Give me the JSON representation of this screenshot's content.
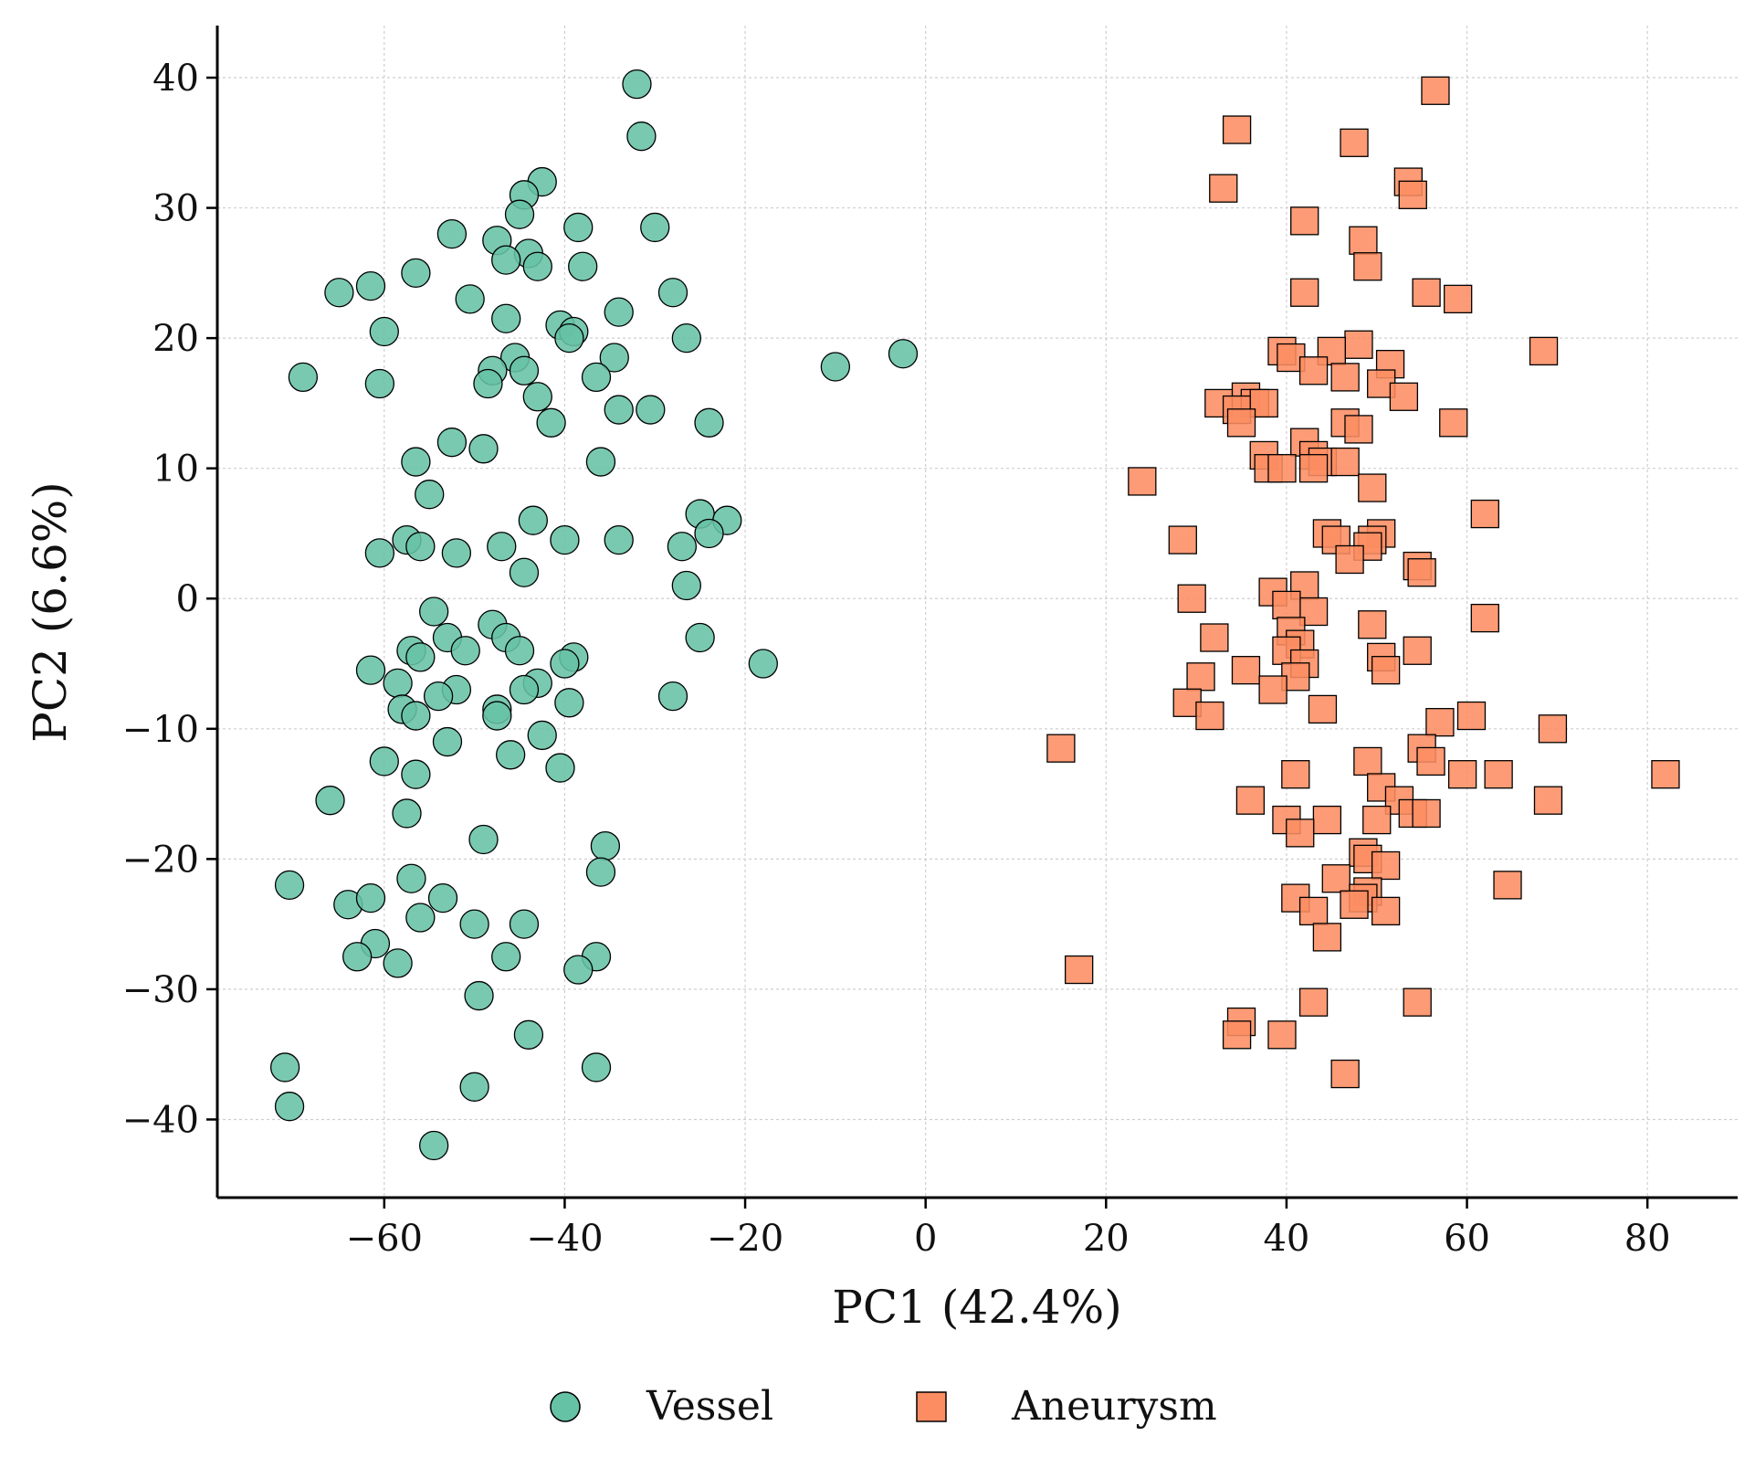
{
  "chart_data": {
    "type": "scatter",
    "title": "",
    "xlabel": "PC1 (42.4%)",
    "ylabel": "PC2 (6.6%)",
    "xlim": [
      -78.5,
      90
    ],
    "ylim": [
      -46,
      44
    ],
    "xticks": [
      -60,
      -40,
      -20,
      0,
      20,
      40,
      60,
      80
    ],
    "yticks": [
      -40,
      -30,
      -20,
      -10,
      0,
      10,
      20,
      30,
      40
    ],
    "xtick_labels": [
      "−60",
      "−40",
      "−20",
      "0",
      "20",
      "40",
      "60",
      "80"
    ],
    "ytick_labels": [
      "−40",
      "−30",
      "−20",
      "−10",
      "0",
      "10",
      "20",
      "30",
      "40"
    ],
    "grid": true,
    "legend_position": "bottom-center",
    "series": [
      {
        "name": "Vessel",
        "marker": "circle",
        "color": "#66c2a5",
        "points": [
          [
            -32.0,
            39.5
          ],
          [
            -31.5,
            35.5
          ],
          [
            -42.5,
            32.0
          ],
          [
            -44.5,
            31.0
          ],
          [
            -45.0,
            29.5
          ],
          [
            -52.5,
            28.0
          ],
          [
            -38.5,
            28.5
          ],
          [
            -30.0,
            28.5
          ],
          [
            -47.5,
            27.5
          ],
          [
            -44.0,
            26.5
          ],
          [
            -46.5,
            26.0
          ],
          [
            -43.0,
            25.5
          ],
          [
            -38.0,
            25.5
          ],
          [
            -56.5,
            25.0
          ],
          [
            -65.0,
            23.5
          ],
          [
            -61.5,
            24.0
          ],
          [
            -28.0,
            23.5
          ],
          [
            -50.5,
            23.0
          ],
          [
            -34.0,
            22.0
          ],
          [
            -46.5,
            21.5
          ],
          [
            -40.5,
            21.0
          ],
          [
            -39.0,
            20.5
          ],
          [
            -39.5,
            20.0
          ],
          [
            -60.0,
            20.5
          ],
          [
            -26.5,
            20.0
          ],
          [
            -34.5,
            18.5
          ],
          [
            -45.5,
            18.5
          ],
          [
            -48.0,
            17.5
          ],
          [
            -44.5,
            17.5
          ],
          [
            -36.5,
            17.0
          ],
          [
            -48.5,
            16.5
          ],
          [
            -60.5,
            16.5
          ],
          [
            -69.0,
            17.0
          ],
          [
            -43.0,
            15.5
          ],
          [
            -34.0,
            14.5
          ],
          [
            -30.5,
            14.5
          ],
          [
            -41.5,
            13.5
          ],
          [
            -24.0,
            13.5
          ],
          [
            -52.5,
            12.0
          ],
          [
            -49.0,
            11.5
          ],
          [
            -56.5,
            10.5
          ],
          [
            -36.0,
            10.5
          ],
          [
            -55.0,
            8.0
          ],
          [
            -25.0,
            6.5
          ],
          [
            -22.0,
            6.0
          ],
          [
            -43.5,
            6.0
          ],
          [
            -24.0,
            5.0
          ],
          [
            -34.0,
            4.5
          ],
          [
            -57.5,
            4.5
          ],
          [
            -56.0,
            4.0
          ],
          [
            -40.0,
            4.5
          ],
          [
            -47.0,
            4.0
          ],
          [
            -27.0,
            4.0
          ],
          [
            -60.5,
            3.5
          ],
          [
            -52.0,
            3.5
          ],
          [
            -44.5,
            2.0
          ],
          [
            -26.5,
            1.0
          ],
          [
            -54.5,
            -1.0
          ],
          [
            -48.0,
            -2.0
          ],
          [
            -46.5,
            -3.0
          ],
          [
            -53.0,
            -3.0
          ],
          [
            -25.0,
            -3.0
          ],
          [
            -57.0,
            -4.0
          ],
          [
            -51.0,
            -4.0
          ],
          [
            -45.0,
            -4.0
          ],
          [
            -56.0,
            -4.5
          ],
          [
            -39.0,
            -4.5
          ],
          [
            -40.0,
            -5.0
          ],
          [
            -18.0,
            -5.0
          ],
          [
            -61.5,
            -5.5
          ],
          [
            -58.5,
            -6.5
          ],
          [
            -43.0,
            -6.5
          ],
          [
            -44.5,
            -7.0
          ],
          [
            -52.0,
            -7.0
          ],
          [
            -54.0,
            -7.5
          ],
          [
            -28.0,
            -7.5
          ],
          [
            -58.0,
            -8.5
          ],
          [
            -39.5,
            -8.0
          ],
          [
            -47.5,
            -8.5
          ],
          [
            -47.5,
            -9.0
          ],
          [
            -56.5,
            -9.0
          ],
          [
            -42.5,
            -10.5
          ],
          [
            -53.0,
            -11.0
          ],
          [
            -46.0,
            -12.0
          ],
          [
            -60.0,
            -12.5
          ],
          [
            -40.5,
            -13.0
          ],
          [
            -56.5,
            -13.5
          ],
          [
            -66.0,
            -15.5
          ],
          [
            -57.5,
            -16.5
          ],
          [
            -49.0,
            -18.5
          ],
          [
            -35.5,
            -19.0
          ],
          [
            -57.0,
            -21.5
          ],
          [
            -36.0,
            -21.0
          ],
          [
            -70.5,
            -22.0
          ],
          [
            -64.0,
            -23.5
          ],
          [
            -61.5,
            -23.0
          ],
          [
            -53.5,
            -23.0
          ],
          [
            -56.0,
            -24.5
          ],
          [
            -50.0,
            -25.0
          ],
          [
            -44.5,
            -25.0
          ],
          [
            -61.0,
            -26.5
          ],
          [
            -63.0,
            -27.5
          ],
          [
            -46.5,
            -27.5
          ],
          [
            -36.5,
            -27.5
          ],
          [
            -58.5,
            -28.0
          ],
          [
            -38.5,
            -28.5
          ],
          [
            -49.5,
            -30.5
          ],
          [
            -44.0,
            -33.5
          ],
          [
            -36.5,
            -36.0
          ],
          [
            -71.0,
            -36.0
          ],
          [
            -50.0,
            -37.5
          ],
          [
            -70.5,
            -39.0
          ],
          [
            -54.5,
            -42.0
          ],
          [
            -10.0,
            17.8
          ],
          [
            -2.5,
            18.8
          ]
        ]
      },
      {
        "name": "Aneurysm",
        "marker": "square",
        "color": "#fc8d62",
        "points": [
          [
            56.5,
            39.0
          ],
          [
            34.5,
            36.0
          ],
          [
            47.5,
            35.0
          ],
          [
            33.0,
            31.5
          ],
          [
            53.5,
            32.0
          ],
          [
            54.0,
            31.0
          ],
          [
            42.0,
            29.0
          ],
          [
            48.5,
            27.5
          ],
          [
            49.0,
            25.5
          ],
          [
            42.0,
            23.5
          ],
          [
            55.5,
            23.5
          ],
          [
            59.0,
            23.0
          ],
          [
            48.0,
            19.5
          ],
          [
            39.5,
            19.0
          ],
          [
            45.0,
            19.0
          ],
          [
            40.5,
            18.5
          ],
          [
            51.5,
            18.0
          ],
          [
            68.5,
            19.0
          ],
          [
            43.0,
            17.5
          ],
          [
            46.5,
            17.0
          ],
          [
            50.5,
            16.5
          ],
          [
            32.5,
            15.0
          ],
          [
            35.5,
            15.5
          ],
          [
            36.5,
            15.0
          ],
          [
            34.5,
            14.5
          ],
          [
            53.0,
            15.5
          ],
          [
            37.5,
            15.0
          ],
          [
            35.0,
            13.5
          ],
          [
            46.5,
            13.5
          ],
          [
            48.0,
            13.0
          ],
          [
            58.5,
            13.5
          ],
          [
            42.0,
            12.0
          ],
          [
            43.0,
            11.0
          ],
          [
            37.5,
            11.0
          ],
          [
            44.0,
            10.5
          ],
          [
            46.5,
            10.5
          ],
          [
            38.0,
            10.0
          ],
          [
            43.0,
            10.0
          ],
          [
            39.5,
            10.0
          ],
          [
            49.5,
            8.5
          ],
          [
            24.0,
            9.0
          ],
          [
            62.0,
            6.5
          ],
          [
            28.5,
            4.5
          ],
          [
            44.5,
            5.0
          ],
          [
            50.5,
            5.0
          ],
          [
            45.5,
            4.5
          ],
          [
            49.5,
            4.5
          ],
          [
            49.0,
            4.0
          ],
          [
            47.0,
            3.0
          ],
          [
            54.5,
            2.5
          ],
          [
            55.0,
            2.0
          ],
          [
            42.0,
            1.0
          ],
          [
            38.5,
            0.5
          ],
          [
            29.5,
            0.0
          ],
          [
            43.0,
            -1.0
          ],
          [
            40.0,
            -0.5
          ],
          [
            40.5,
            -2.5
          ],
          [
            49.5,
            -2.0
          ],
          [
            62.0,
            -1.5
          ],
          [
            32.0,
            -3.0
          ],
          [
            41.5,
            -3.5
          ],
          [
            40.0,
            -4.0
          ],
          [
            54.5,
            -4.0
          ],
          [
            50.5,
            -4.5
          ],
          [
            42.0,
            -5.0
          ],
          [
            35.5,
            -5.5
          ],
          [
            51.0,
            -5.5
          ],
          [
            41.0,
            -6.0
          ],
          [
            30.5,
            -6.0
          ],
          [
            38.5,
            -7.0
          ],
          [
            29.0,
            -8.0
          ],
          [
            44.0,
            -8.5
          ],
          [
            31.5,
            -9.0
          ],
          [
            60.5,
            -9.0
          ],
          [
            57.0,
            -9.5
          ],
          [
            69.5,
            -10.0
          ],
          [
            15.0,
            -11.5
          ],
          [
            55.0,
            -11.5
          ],
          [
            49.0,
            -12.5
          ],
          [
            56.0,
            -12.5
          ],
          [
            41.0,
            -13.5
          ],
          [
            59.5,
            -13.5
          ],
          [
            63.5,
            -13.5
          ],
          [
            82.0,
            -13.5
          ],
          [
            50.5,
            -14.5
          ],
          [
            52.5,
            -15.5
          ],
          [
            36.0,
            -15.5
          ],
          [
            69.0,
            -15.5
          ],
          [
            54.0,
            -16.5
          ],
          [
            40.0,
            -17.0
          ],
          [
            44.5,
            -17.0
          ],
          [
            50.0,
            -17.0
          ],
          [
            55.5,
            -16.5
          ],
          [
            41.5,
            -18.0
          ],
          [
            48.5,
            -19.5
          ],
          [
            49.0,
            -20.0
          ],
          [
            51.0,
            -20.5
          ],
          [
            45.5,
            -21.5
          ],
          [
            64.5,
            -22.0
          ],
          [
            49.0,
            -22.5
          ],
          [
            48.5,
            -23.0
          ],
          [
            41.0,
            -23.0
          ],
          [
            47.5,
            -23.5
          ],
          [
            43.0,
            -24.0
          ],
          [
            51.0,
            -24.0
          ],
          [
            44.5,
            -26.0
          ],
          [
            17.0,
            -28.5
          ],
          [
            54.5,
            -31.0
          ],
          [
            43.0,
            -31.0
          ],
          [
            35.0,
            -32.5
          ],
          [
            34.5,
            -33.5
          ],
          [
            39.5,
            -33.5
          ],
          [
            46.5,
            -36.5
          ]
        ]
      }
    ]
  }
}
